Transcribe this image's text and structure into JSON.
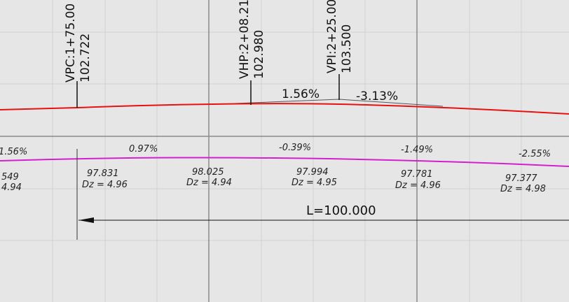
{
  "stations": [
    {
      "label": "VPC:1+75.00",
      "elevation": "102.722"
    },
    {
      "label": "VHP:2+08.21",
      "elevation": "102.980"
    },
    {
      "label": "VPI:2+25.00",
      "elevation": "103.500"
    }
  ],
  "tangent_grades": [
    "1.56%",
    "-3.13%"
  ],
  "grades": [
    "1.56%",
    "0.97%",
    "-0.39%",
    "-1.49%",
    "-2.55%"
  ],
  "elevations": [
    {
      "elevation": "549",
      "dz": "4.94"
    },
    {
      "elevation": "97.831",
      "dz": "Dz = 4.96"
    },
    {
      "elevation": "98.025",
      "dz": "Dz = 4.94"
    },
    {
      "elevation": "97.994",
      "dz": "Dz = 4.95"
    },
    {
      "elevation": "97.781",
      "dz": "Dz = 4.96"
    },
    {
      "elevation": "97.377",
      "dz": "Dz = 4.98"
    }
  ],
  "length": "L=100.000"
}
